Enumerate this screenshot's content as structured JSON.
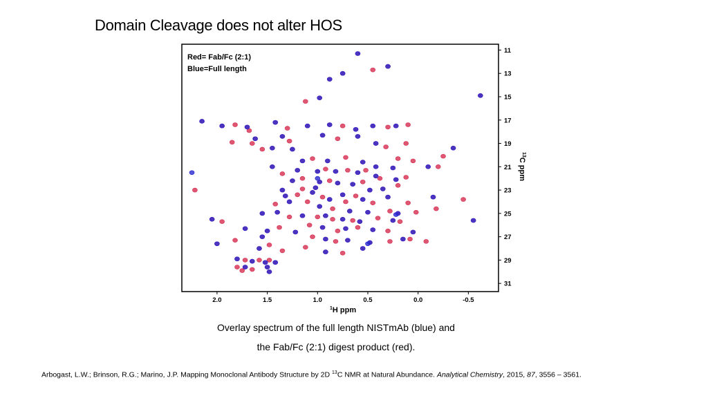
{
  "slide": {
    "title": "Domain Cleavage does not alter HOS",
    "caption_line1": "Overlay spectrum of the full length NISTmAb (blue) and",
    "caption_line2": "the Fab/Fc (2:1) digest product (red).",
    "citation": {
      "authors_and_title": "Arbogast, L.W.; Brinson, R.G.; Marino, J.P. Mapping Monoclonal Antibody Structure by 2D ",
      "isotope_mass": "13",
      "title_end": "C NMR at Natural Abundance. ",
      "journal": "Analytical Chemistry",
      "year": ", 2015, ",
      "volume": "87",
      "pages": ", 3556 – 3561."
    }
  },
  "colors": {
    "red": "#d8395a",
    "blue": "#2a2ad0",
    "frame": "#000000"
  },
  "chart_data": {
    "type": "scatter",
    "legend": {
      "line1": "Red= Fab/Fc (2:1)",
      "line2": "Blue=Full length",
      "placement": "top-left"
    },
    "xlabel": {
      "sup": "1",
      "text": "H ppm"
    },
    "ylabel": {
      "sup": "13",
      "text": "C ppm"
    },
    "xlim": [
      2.35,
      -0.8
    ],
    "ylim": [
      10.5,
      31.7
    ],
    "xticks": [
      2.0,
      1.5,
      1.0,
      0.5,
      0.0,
      -0.5
    ],
    "xtick_labels": [
      "2.0",
      "1.5",
      "1.0",
      "0.5",
      "0.0",
      "-0.5"
    ],
    "yticks": [
      11,
      13,
      15,
      17,
      19,
      21,
      23,
      25,
      27,
      29,
      31
    ],
    "ytick_labels": [
      "11",
      "13",
      "15",
      "17",
      "19",
      "21",
      "23",
      "25",
      "27",
      "29",
      "31"
    ],
    "grid": false,
    "series": [
      {
        "color": "red",
        "points": [
          [
            0.6,
            11.3
          ],
          [
            0.45,
            12.7
          ],
          [
            0.3,
            12.4
          ],
          [
            0.75,
            13.0
          ],
          [
            0.88,
            13.5
          ],
          [
            -0.62,
            14.9
          ],
          [
            0.98,
            15.1
          ],
          [
            1.12,
            15.4
          ],
          [
            2.15,
            17.1
          ],
          [
            1.95,
            17.5
          ],
          [
            1.82,
            17.4
          ],
          [
            1.7,
            17.6
          ],
          [
            1.42,
            17.2
          ],
          [
            1.3,
            17.7
          ],
          [
            1.1,
            17.5
          ],
          [
            0.88,
            17.4
          ],
          [
            0.75,
            17.5
          ],
          [
            0.62,
            17.8
          ],
          [
            0.45,
            17.5
          ],
          [
            0.3,
            17.6
          ],
          [
            0.22,
            17.5
          ],
          [
            0.1,
            17.4
          ],
          [
            1.62,
            18.6
          ],
          [
            1.35,
            18.4
          ],
          [
            1.28,
            18.8
          ],
          [
            0.95,
            18.3
          ],
          [
            0.8,
            18.6
          ],
          [
            0.6,
            18.4
          ],
          [
            0.42,
            19.0
          ],
          [
            0.32,
            19.3
          ],
          [
            0.12,
            19.0
          ],
          [
            -0.35,
            19.4
          ],
          [
            1.55,
            19.5
          ],
          [
            1.45,
            19.4
          ],
          [
            1.25,
            19.5
          ],
          [
            1.15,
            20.5
          ],
          [
            1.05,
            20.3
          ],
          [
            0.9,
            20.5
          ],
          [
            0.72,
            20.2
          ],
          [
            0.55,
            20.6
          ],
          [
            0.42,
            21.0
          ],
          [
            0.25,
            21.1
          ],
          [
            0.2,
            20.3
          ],
          [
            0.05,
            20.5
          ],
          [
            -0.1,
            21.0
          ],
          [
            -0.2,
            21.0
          ],
          [
            -0.25,
            20.1
          ],
          [
            1.45,
            21.0
          ],
          [
            1.35,
            21.6
          ],
          [
            1.2,
            21.3
          ],
          [
            1.0,
            21.4
          ],
          [
            0.92,
            21.2
          ],
          [
            0.82,
            21.4
          ],
          [
            0.7,
            21.3
          ],
          [
            0.6,
            21.5
          ],
          [
            0.52,
            21.3
          ],
          [
            0.42,
            21.8
          ],
          [
            0.38,
            22.0
          ],
          [
            0.22,
            22.1
          ],
          [
            0.12,
            21.9
          ],
          [
            1.25,
            22.2
          ],
          [
            1.15,
            22.0
          ],
          [
            0.98,
            22.3
          ],
          [
            0.88,
            22.2
          ],
          [
            0.8,
            22.4
          ],
          [
            0.65,
            22.5
          ],
          [
            0.55,
            22.3
          ],
          [
            1.35,
            23.0
          ],
          [
            1.15,
            22.9
          ],
          [
            1.02,
            22.8
          ],
          [
            0.75,
            23.4
          ],
          [
            0.62,
            23.5
          ],
          [
            0.48,
            23.0
          ],
          [
            0.35,
            22.9
          ],
          [
            0.2,
            22.6
          ],
          [
            1.32,
            23.5
          ],
          [
            1.2,
            23.4
          ],
          [
            1.05,
            23.2
          ],
          [
            0.95,
            23.6
          ],
          [
            0.88,
            23.8
          ],
          [
            0.72,
            24.0
          ],
          [
            0.55,
            23.8
          ],
          [
            0.45,
            24.1
          ],
          [
            0.3,
            23.6
          ],
          [
            0.1,
            24.1
          ],
          [
            -0.15,
            23.6
          ],
          [
            -0.45,
            23.8
          ],
          [
            1.42,
            24.2
          ],
          [
            1.28,
            24.0
          ],
          [
            1.1,
            24.0
          ],
          [
            0.98,
            24.4
          ],
          [
            0.85,
            24.6
          ],
          [
            0.68,
            24.8
          ],
          [
            0.5,
            24.9
          ],
          [
            0.28,
            24.8
          ],
          [
            0.2,
            25.0
          ],
          [
            0.02,
            24.9
          ],
          [
            -0.18,
            24.6
          ],
          [
            1.55,
            25.0
          ],
          [
            1.4,
            24.9
          ],
          [
            1.28,
            25.3
          ],
          [
            1.15,
            25.2
          ],
          [
            1.0,
            25.3
          ],
          [
            0.92,
            25.2
          ],
          [
            0.85,
            25.5
          ],
          [
            0.75,
            25.5
          ],
          [
            0.65,
            25.6
          ],
          [
            0.58,
            25.7
          ],
          [
            0.4,
            25.4
          ],
          [
            0.25,
            25.6
          ],
          [
            0.18,
            25.7
          ],
          [
            2.05,
            25.5
          ],
          [
            1.95,
            25.7
          ],
          [
            1.72,
            26.3
          ],
          [
            1.5,
            26.5
          ],
          [
            1.38,
            26.2
          ],
          [
            1.22,
            26.6
          ],
          [
            1.08,
            26.0
          ],
          [
            0.95,
            26.2
          ],
          [
            0.8,
            26.5
          ],
          [
            0.72,
            26.3
          ],
          [
            0.6,
            26.2
          ],
          [
            0.45,
            26.4
          ],
          [
            0.3,
            26.5
          ],
          [
            0.05,
            26.6
          ],
          [
            -0.55,
            25.6
          ],
          [
            1.05,
            27.0
          ],
          [
            0.92,
            27.2
          ],
          [
            0.82,
            27.4
          ],
          [
            0.7,
            27.3
          ],
          [
            0.48,
            27.5
          ],
          [
            0.28,
            27.4
          ],
          [
            0.15,
            27.2
          ],
          [
            0.08,
            27.2
          ],
          [
            -0.08,
            27.4
          ],
          [
            2.0,
            27.6
          ],
          [
            1.82,
            27.3
          ],
          [
            1.55,
            27.0
          ],
          [
            1.48,
            27.7
          ],
          [
            1.58,
            28.0
          ],
          [
            1.12,
            27.9
          ],
          [
            0.92,
            28.3
          ],
          [
            0.75,
            28.4
          ],
          [
            0.55,
            28.0
          ],
          [
            1.35,
            28.2
          ],
          [
            1.8,
            28.9
          ],
          [
            1.72,
            29.0
          ],
          [
            1.65,
            29.1
          ],
          [
            1.58,
            29.0
          ],
          [
            1.52,
            29.2
          ],
          [
            1.48,
            29.0
          ],
          [
            1.42,
            29.2
          ],
          [
            1.8,
            29.6
          ],
          [
            1.72,
            29.6
          ],
          [
            1.65,
            29.8
          ],
          [
            1.5,
            29.6
          ],
          [
            1.75,
            29.9
          ],
          [
            1.48,
            30.0
          ],
          [
            1.85,
            18.9
          ],
          [
            1.65,
            19.0
          ],
          [
            2.22,
            23.0
          ],
          [
            1.68,
            17.9
          ]
        ]
      },
      {
        "color": "blue",
        "points": [
          [
            0.6,
            11.3
          ],
          [
            0.3,
            12.4
          ],
          [
            0.75,
            13.0
          ],
          [
            0.88,
            13.5
          ],
          [
            -0.62,
            14.9
          ],
          [
            0.98,
            15.1
          ],
          [
            2.15,
            17.1
          ],
          [
            1.95,
            17.5
          ],
          [
            1.7,
            17.6
          ],
          [
            1.42,
            17.2
          ],
          [
            1.1,
            17.5
          ],
          [
            0.88,
            17.4
          ],
          [
            0.62,
            17.8
          ],
          [
            0.45,
            17.5
          ],
          [
            0.22,
            17.5
          ],
          [
            1.62,
            18.6
          ],
          [
            1.35,
            18.4
          ],
          [
            0.95,
            18.3
          ],
          [
            0.6,
            18.4
          ],
          [
            0.42,
            19.0
          ],
          [
            -0.35,
            19.4
          ],
          [
            1.45,
            19.4
          ],
          [
            1.25,
            19.5
          ],
          [
            1.15,
            20.5
          ],
          [
            0.9,
            20.5
          ],
          [
            0.55,
            20.6
          ],
          [
            0.42,
            21.0
          ],
          [
            0.25,
            21.1
          ],
          [
            -0.1,
            21.0
          ],
          [
            1.45,
            21.0
          ],
          [
            1.2,
            21.3
          ],
          [
            1.0,
            21.4
          ],
          [
            0.82,
            21.4
          ],
          [
            0.6,
            21.5
          ],
          [
            0.42,
            21.8
          ],
          [
            0.22,
            22.1
          ],
          [
            1.25,
            22.2
          ],
          [
            0.98,
            22.3
          ],
          [
            0.8,
            22.4
          ],
          [
            0.65,
            22.5
          ],
          [
            1.35,
            23.0
          ],
          [
            1.02,
            22.8
          ],
          [
            0.75,
            23.4
          ],
          [
            0.48,
            23.0
          ],
          [
            0.35,
            22.9
          ],
          [
            1.32,
            23.5
          ],
          [
            1.05,
            23.2
          ],
          [
            0.88,
            23.8
          ],
          [
            0.55,
            23.8
          ],
          [
            0.3,
            23.6
          ],
          [
            -0.15,
            23.6
          ],
          [
            1.28,
            24.0
          ],
          [
            0.98,
            24.4
          ],
          [
            0.68,
            24.8
          ],
          [
            0.5,
            24.9
          ],
          [
            0.2,
            25.0
          ],
          [
            1.55,
            25.0
          ],
          [
            1.4,
            24.9
          ],
          [
            1.15,
            25.2
          ],
          [
            0.92,
            25.2
          ],
          [
            0.75,
            25.5
          ],
          [
            0.58,
            25.7
          ],
          [
            0.25,
            25.6
          ],
          [
            2.05,
            25.5
          ],
          [
            1.72,
            26.3
          ],
          [
            1.5,
            26.5
          ],
          [
            1.22,
            26.6
          ],
          [
            0.95,
            26.2
          ],
          [
            0.72,
            26.3
          ],
          [
            0.45,
            26.4
          ],
          [
            0.05,
            26.6
          ],
          [
            -0.55,
            25.6
          ],
          [
            0.92,
            27.2
          ],
          [
            0.7,
            27.3
          ],
          [
            0.48,
            27.5
          ],
          [
            0.15,
            27.2
          ],
          [
            0.5,
            27.6
          ],
          [
            2.0,
            27.6
          ],
          [
            1.55,
            27.0
          ],
          [
            1.58,
            28.0
          ],
          [
            0.92,
            28.3
          ],
          [
            0.55,
            28.0
          ],
          [
            1.8,
            28.9
          ],
          [
            1.65,
            29.1
          ],
          [
            1.52,
            29.2
          ],
          [
            1.42,
            29.2
          ],
          [
            1.72,
            29.6
          ],
          [
            1.5,
            29.6
          ],
          [
            1.48,
            30.0
          ],
          [
            2.25,
            21.5
          ],
          [
            0.22,
            25.1
          ],
          [
            1.0,
            22.0
          ]
        ]
      }
    ]
  }
}
